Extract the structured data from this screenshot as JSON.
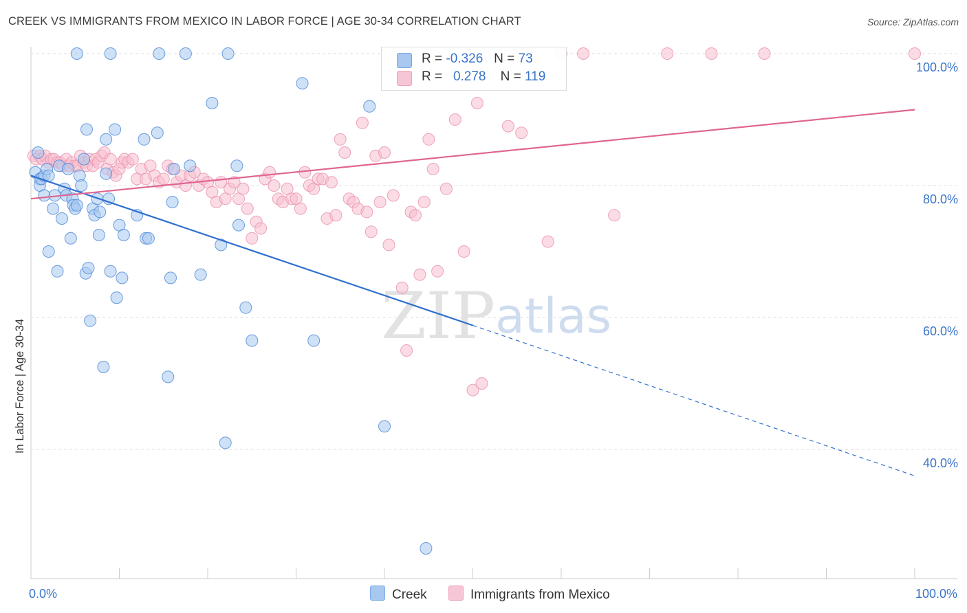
{
  "header": {
    "title": "CREEK VS IMMIGRANTS FROM MEXICO IN LABOR FORCE | AGE 30-34 CORRELATION CHART",
    "source": "Source: ZipAtlas.com"
  },
  "watermark": {
    "part1": "ZIP",
    "part2": "atlas"
  },
  "legend": {
    "items": [
      {
        "r_label": "R =",
        "r_value": "-0.326",
        "n_label": "N =",
        "n_value": "73",
        "color": "#9cc3ee"
      },
      {
        "r_label": "R =",
        "r_value": "0.278",
        "n_label": "N =",
        "n_value": "119",
        "color": "#f5b5c9"
      }
    ]
  },
  "bottom_legend": {
    "creek": "Creek",
    "mexico": "Immigrants from Mexico"
  },
  "colors": {
    "creek_fill": "#a8c8f0",
    "creek_stroke": "#4a86d6",
    "creek_line": "#2f6fcf",
    "mexico_fill": "#f7bfd0",
    "mexico_stroke": "#e890ad",
    "mexico_line": "#e06592",
    "axis_label": "#3a74c9",
    "grid": "#dddddd"
  },
  "chart_data": {
    "type": "scatter",
    "title": "CREEK VS IMMIGRANTS FROM MEXICO IN LABOR FORCE | AGE 30-34 CORRELATION CHART",
    "xlabel": "",
    "ylabel": "In Labor Force | Age 30-34",
    "xlim": [
      0,
      100
    ],
    "ylim": [
      22,
      102
    ],
    "x_tick_labels": [
      "0.0%",
      "100.0%"
    ],
    "y_ticks": [
      40,
      60,
      80,
      100
    ],
    "y_tick_labels": [
      "40.0%",
      "60.0%",
      "80.0%",
      "100.0%"
    ],
    "grid": true,
    "series": [
      {
        "name": "Creek",
        "r": -0.326,
        "n": 73,
        "trend": {
          "x0": 0,
          "y0": 81.5,
          "x1": 50,
          "y1": 58.8,
          "x_dashed_end": 100,
          "y_dashed_end": 36.0
        },
        "points": [
          [
            0.5,
            82
          ],
          [
            0.8,
            85
          ],
          [
            1.0,
            81
          ],
          [
            1.0,
            80
          ],
          [
            1.2,
            81
          ],
          [
            1.5,
            78.5
          ],
          [
            1.5,
            81.5
          ],
          [
            1.8,
            82.5
          ],
          [
            2.0,
            81.5
          ],
          [
            2.0,
            70.0
          ],
          [
            2.5,
            76.5
          ],
          [
            2.7,
            78.5
          ],
          [
            3.0,
            67.0
          ],
          [
            3.2,
            83.0
          ],
          [
            3.5,
            75.0
          ],
          [
            3.8,
            79.5
          ],
          [
            4.0,
            78.5
          ],
          [
            4.2,
            82.5
          ],
          [
            4.5,
            72.0
          ],
          [
            4.7,
            78.0
          ],
          [
            4.8,
            77.0
          ],
          [
            5.0,
            76.5
          ],
          [
            5.2,
            77.0
          ],
          [
            5.5,
            81.5
          ],
          [
            5.7,
            80.0
          ],
          [
            6.0,
            84.0
          ],
          [
            6.2,
            66.7
          ],
          [
            6.3,
            88.5
          ],
          [
            6.5,
            67.5
          ],
          [
            6.7,
            59.5
          ],
          [
            7.0,
            76.5
          ],
          [
            7.2,
            75.5
          ],
          [
            7.5,
            78.0
          ],
          [
            7.7,
            72.5
          ],
          [
            7.8,
            76.0
          ],
          [
            8.2,
            52.5
          ],
          [
            8.5,
            87.0
          ],
          [
            8.5,
            81.8
          ],
          [
            8.8,
            78.0
          ],
          [
            9.0,
            67.0
          ],
          [
            9.5,
            88.5
          ],
          [
            9.7,
            63.0
          ],
          [
            10.0,
            74.0
          ],
          [
            10.3,
            66.0
          ],
          [
            10.5,
            72.5
          ],
          [
            12.0,
            75.5
          ],
          [
            12.8,
            87.0
          ],
          [
            13.0,
            72.0
          ],
          [
            13.3,
            72.0
          ],
          [
            14.3,
            88.0
          ],
          [
            15.5,
            51.0
          ],
          [
            15.8,
            66.0
          ],
          [
            16.0,
            77.5
          ],
          [
            16.2,
            82.5
          ],
          [
            18.0,
            83.0
          ],
          [
            19.2,
            66.5
          ],
          [
            20.5,
            92.5
          ],
          [
            21.5,
            71.0
          ],
          [
            22.0,
            41.0
          ],
          [
            23.3,
            83.0
          ],
          [
            23.5,
            74.0
          ],
          [
            24.3,
            61.5
          ],
          [
            25.0,
            56.5
          ],
          [
            30.7,
            95.5
          ],
          [
            32.0,
            56.5
          ],
          [
            38.3,
            92.0
          ],
          [
            40.0,
            43.5
          ],
          [
            44.7,
            25.0
          ],
          [
            5.2,
            100.0
          ],
          [
            9.0,
            100.0
          ],
          [
            14.5,
            100.0
          ],
          [
            17.5,
            100.0
          ],
          [
            22.3,
            100.0
          ]
        ]
      },
      {
        "name": "Immigrants from Mexico",
        "r": 0.278,
        "n": 119,
        "trend": {
          "x0": 0,
          "y0": 78.0,
          "x1": 100,
          "y1": 91.5
        },
        "points": [
          [
            0.3,
            84.5
          ],
          [
            0.6,
            84.0
          ],
          [
            1.0,
            84.5
          ],
          [
            1.3,
            84.0
          ],
          [
            1.6,
            84.5
          ],
          [
            2.0,
            83.5
          ],
          [
            2.3,
            84.0
          ],
          [
            2.6,
            84.0
          ],
          [
            3.0,
            83.5
          ],
          [
            3.3,
            83.5
          ],
          [
            3.6,
            83.0
          ],
          [
            4.0,
            84.0
          ],
          [
            4.3,
            83.0
          ],
          [
            4.6,
            83.5
          ],
          [
            5.0,
            83.0
          ],
          [
            5.3,
            83.0
          ],
          [
            5.6,
            84.5
          ],
          [
            6.0,
            83.5
          ],
          [
            6.3,
            83.0
          ],
          [
            6.6,
            84.0
          ],
          [
            7.0,
            83.0
          ],
          [
            7.3,
            84.0
          ],
          [
            7.6,
            83.5
          ],
          [
            8.0,
            84.5
          ],
          [
            8.3,
            85.0
          ],
          [
            8.6,
            82.5
          ],
          [
            9.0,
            84.0
          ],
          [
            9.3,
            82.0
          ],
          [
            9.6,
            81.5
          ],
          [
            10.0,
            82.5
          ],
          [
            10.3,
            83.5
          ],
          [
            10.6,
            84.0
          ],
          [
            11.0,
            83.5
          ],
          [
            11.5,
            84.0
          ],
          [
            12.0,
            81.0
          ],
          [
            12.5,
            82.5
          ],
          [
            13.0,
            81.0
          ],
          [
            13.5,
            83.0
          ],
          [
            14.0,
            81.5
          ],
          [
            14.5,
            80.5
          ],
          [
            15.0,
            81.0
          ],
          [
            15.5,
            83.0
          ],
          [
            16.0,
            82.5
          ],
          [
            16.5,
            80.5
          ],
          [
            17.0,
            81.5
          ],
          [
            17.5,
            80.0
          ],
          [
            18.0,
            81.5
          ],
          [
            18.5,
            82.0
          ],
          [
            19.0,
            80.0
          ],
          [
            19.5,
            81.0
          ],
          [
            20.0,
            80.5
          ],
          [
            20.5,
            79.0
          ],
          [
            21.0,
            77.5
          ],
          [
            21.5,
            80.5
          ],
          [
            22.0,
            78.0
          ],
          [
            22.5,
            79.5
          ],
          [
            23.0,
            80.5
          ],
          [
            23.5,
            78.0
          ],
          [
            24.0,
            79.5
          ],
          [
            24.5,
            76.5
          ],
          [
            25.0,
            72.0
          ],
          [
            25.5,
            74.5
          ],
          [
            26.0,
            73.5
          ],
          [
            26.5,
            81.0
          ],
          [
            27.0,
            82.0
          ],
          [
            27.5,
            80.0
          ],
          [
            28.0,
            78.0
          ],
          [
            28.5,
            77.5
          ],
          [
            29.0,
            79.5
          ],
          [
            29.5,
            78.0
          ],
          [
            30.0,
            78.0
          ],
          [
            30.5,
            76.5
          ],
          [
            31.0,
            82.0
          ],
          [
            31.5,
            80.0
          ],
          [
            32.0,
            79.5
          ],
          [
            32.5,
            81.0
          ],
          [
            33.0,
            81.0
          ],
          [
            33.5,
            75.0
          ],
          [
            34.0,
            80.5
          ],
          [
            34.5,
            75.5
          ],
          [
            35.0,
            87.0
          ],
          [
            35.5,
            85.0
          ],
          [
            36.0,
            78.0
          ],
          [
            36.5,
            77.5
          ],
          [
            37.0,
            76.5
          ],
          [
            37.5,
            89.5
          ],
          [
            38.0,
            76.0
          ],
          [
            38.5,
            73.0
          ],
          [
            39.0,
            84.5
          ],
          [
            39.5,
            77.5
          ],
          [
            40.0,
            85.0
          ],
          [
            40.5,
            71.0
          ],
          [
            41.0,
            78.5
          ],
          [
            42.0,
            64.5
          ],
          [
            42.5,
            55.0
          ],
          [
            43.0,
            76.0
          ],
          [
            43.5,
            75.5
          ],
          [
            44.0,
            66.5
          ],
          [
            44.5,
            77.5
          ],
          [
            45.0,
            87.0
          ],
          [
            45.5,
            82.5
          ],
          [
            46.0,
            67.0
          ],
          [
            47.0,
            79.5
          ],
          [
            48.0,
            90.0
          ],
          [
            49.0,
            70.0
          ],
          [
            50.0,
            49.0
          ],
          [
            50.5,
            92.5
          ],
          [
            51.0,
            50.0
          ],
          [
            54.0,
            89.0
          ],
          [
            55.5,
            88.0
          ],
          [
            58.5,
            71.5
          ],
          [
            66.0,
            75.5
          ],
          [
            56.0,
            100.0
          ],
          [
            60.0,
            100.0
          ],
          [
            62.5,
            100.0
          ],
          [
            72.0,
            100.0
          ],
          [
            77.0,
            100.0
          ],
          [
            83.0,
            100.0
          ],
          [
            100.0,
            100.0
          ]
        ]
      }
    ]
  }
}
